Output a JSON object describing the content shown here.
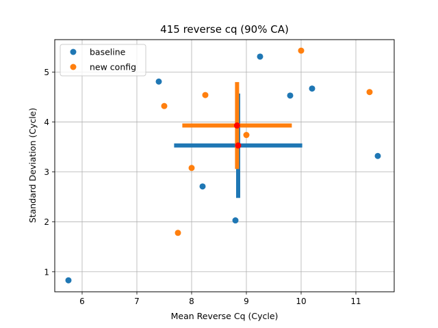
{
  "chart_data": {
    "type": "scatter",
    "title": "415 reverse cq (90% CA)",
    "xlabel": "Mean Reverse Cq (Cycle)",
    "ylabel": "Standard Deviation (Cycle)",
    "xlim": [
      5.5,
      11.7
    ],
    "ylim": [
      0.6,
      5.65
    ],
    "x_ticks": [
      6,
      7,
      8,
      9,
      10,
      11
    ],
    "y_ticks": [
      1,
      2,
      3,
      4,
      5
    ],
    "grid": true,
    "legend_position": "upper-left",
    "series": [
      {
        "name": "baseline",
        "color": "#1f77b4",
        "points": [
          {
            "x": 5.75,
            "y": 0.83
          },
          {
            "x": 7.4,
            "y": 4.81
          },
          {
            "x": 8.2,
            "y": 2.71
          },
          {
            "x": 8.8,
            "y": 2.03
          },
          {
            "x": 9.25,
            "y": 5.31
          },
          {
            "x": 9.8,
            "y": 4.53
          },
          {
            "x": 10.2,
            "y": 4.67
          },
          {
            "x": 11.4,
            "y": 3.32
          }
        ],
        "center": {
          "x": 8.85,
          "y": 3.53
        },
        "xerr": [
          7.68,
          10.02
        ],
        "yerr": [
          2.48,
          4.57
        ]
      },
      {
        "name": "new config",
        "color": "#ff7f0e",
        "points": [
          {
            "x": 7.5,
            "y": 4.32
          },
          {
            "x": 7.75,
            "y": 1.78
          },
          {
            "x": 8.0,
            "y": 3.08
          },
          {
            "x": 8.25,
            "y": 4.54
          },
          {
            "x": 9.0,
            "y": 3.74
          },
          {
            "x": 10.0,
            "y": 5.43
          },
          {
            "x": 11.25,
            "y": 4.6
          }
        ],
        "center": {
          "x": 8.83,
          "y": 3.93
        },
        "xerr": [
          7.83,
          9.83
        ],
        "yerr": [
          3.06,
          4.8
        ]
      }
    ],
    "center_marker_color": "#ff0000"
  }
}
